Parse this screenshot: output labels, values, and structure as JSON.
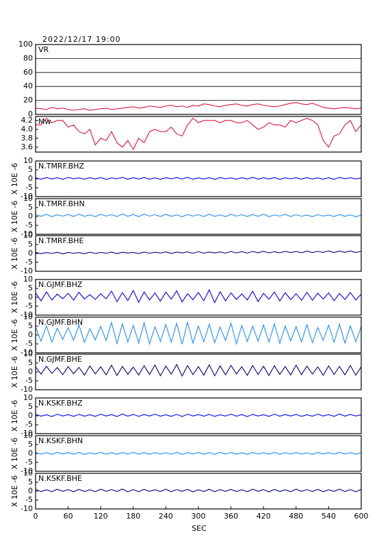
{
  "chart_data": {
    "type": "line",
    "title": "2022/12/17 19:00",
    "xlabel": "SEC",
    "xlim": [
      0,
      600
    ],
    "xticks": [
      0,
      60,
      120,
      180,
      240,
      300,
      360,
      420,
      480,
      540,
      600
    ],
    "x": [
      0,
      10,
      20,
      30,
      40,
      50,
      60,
      70,
      80,
      90,
      100,
      110,
      120,
      130,
      140,
      150,
      160,
      170,
      180,
      190,
      200,
      210,
      220,
      230,
      240,
      250,
      260,
      270,
      280,
      290,
      300,
      310,
      320,
      330,
      340,
      350,
      360,
      370,
      380,
      390,
      400,
      410,
      420,
      430,
      440,
      450,
      460,
      470,
      480,
      490,
      500,
      510,
      520,
      530,
      540,
      550,
      560,
      570,
      580,
      590,
      600
    ],
    "panels": [
      {
        "label": "VR",
        "ylim": [
          0,
          100
        ],
        "yticks": [
          0,
          20,
          40,
          60,
          80,
          100
        ],
        "grid": true,
        "color": "#dc143c",
        "values": [
          9,
          8,
          7,
          10,
          8,
          9,
          7,
          6,
          7,
          8,
          6,
          7,
          8,
          9,
          7,
          8,
          9,
          10,
          11,
          9,
          10,
          12,
          11,
          10,
          12,
          13,
          11,
          12,
          10,
          13,
          12,
          15,
          14,
          12,
          11,
          13,
          14,
          15,
          13,
          12,
          14,
          15,
          13,
          12,
          11,
          12,
          14,
          16,
          17,
          15,
          14,
          16,
          13,
          10,
          9,
          8,
          9,
          10,
          9,
          8,
          9
        ]
      },
      {
        "label": "Mw",
        "ylim": [
          3.49,
          4.29
        ],
        "yticks": [
          3.6,
          3.8,
          {
            "value": 4,
            "label": "4.0"
          },
          4.2
        ],
        "grid": false,
        "color": "#dc143c",
        "values": [
          4.1,
          4.1,
          4.25,
          4.15,
          4.2,
          4.2,
          4.05,
          4.1,
          3.95,
          3.9,
          4.0,
          3.65,
          3.8,
          3.75,
          3.95,
          3.7,
          3.6,
          3.75,
          3.55,
          3.8,
          3.7,
          3.95,
          4.0,
          3.95,
          3.95,
          4.05,
          3.9,
          3.85,
          4.1,
          4.25,
          4.15,
          4.2,
          4.2,
          4.2,
          4.15,
          4.2,
          4.2,
          4.15,
          4.15,
          4.2,
          4.1,
          4.0,
          4.05,
          4.15,
          4.1,
          4.1,
          4.05,
          4.2,
          4.15,
          4.2,
          4.25,
          4.2,
          4.1,
          3.75,
          3.6,
          3.85,
          3.9,
          4.1,
          4.2,
          3.95,
          4.1
        ]
      },
      {
        "label": "N.TMRF.BHZ",
        "ylabel": "X 10E -6",
        "ylim": [
          -10,
          10
        ],
        "yticks": [
          -10,
          -5,
          0,
          5,
          10
        ],
        "grid": false,
        "color": "#0000ff",
        "values": [
          0.5,
          -0.2,
          0.7,
          -0.1,
          0.6,
          -0.3,
          0.8,
          0.0,
          0.5,
          -0.2,
          0.6,
          -0.1,
          0.7,
          -0.3,
          0.5,
          0.0,
          0.8,
          -0.2,
          0.6,
          -0.1,
          0.7,
          -0.2,
          0.5,
          -0.3,
          0.6,
          0.0,
          0.7,
          -0.1,
          0.8,
          -0.2,
          0.5,
          -0.1,
          0.6,
          -0.3,
          0.7,
          0.0,
          0.5,
          -0.2,
          0.6,
          -0.1,
          0.8,
          -0.2,
          0.6,
          -0.1,
          0.7,
          -0.3,
          0.5,
          0.0,
          0.6,
          -0.2,
          0.7,
          -0.1,
          0.5,
          -0.2,
          0.6,
          -0.3,
          0.8,
          0.0,
          0.6,
          -0.1,
          0.5
        ]
      },
      {
        "label": "N.TMRF.BHN",
        "ylabel": "X 10E -6",
        "ylim": [
          -10,
          10
        ],
        "yticks": [
          -10,
          -5,
          0,
          5,
          10
        ],
        "grid": false,
        "color": "#1e8cff",
        "values": [
          1.0,
          0.1,
          1.2,
          -0.1,
          0.9,
          0.2,
          1.1,
          0.0,
          1.3,
          0.1,
          0.9,
          -0.1,
          1.2,
          0.2,
          1.0,
          0.0,
          1.4,
          0.1,
          1.1,
          -0.1,
          1.3,
          0.2,
          1.0,
          0.0,
          1.2,
          0.1,
          0.9,
          -0.1,
          1.1,
          0.2,
          1.0,
          0.0,
          1.3,
          0.1,
          0.9,
          -0.1,
          1.2,
          0.2,
          1.0,
          0.0,
          1.1,
          0.1,
          1.3,
          -0.1,
          0.9,
          0.2,
          1.2,
          0.0,
          1.0,
          0.1,
          0.8,
          -0.1,
          1.0,
          0.2,
          0.9,
          0.0,
          1.1,
          0.1,
          0.9,
          -0.1,
          0.8
        ]
      },
      {
        "label": "N.TMRF.BHE",
        "ylabel": "X 10E -6",
        "ylim": [
          -10,
          10
        ],
        "yticks": [
          -10,
          -5,
          0,
          5,
          10
        ],
        "grid": false,
        "color": "#000080",
        "values": [
          0.6,
          -0.1,
          0.5,
          0.0,
          0.7,
          -0.2,
          0.6,
          0.1,
          0.5,
          -0.1,
          0.7,
          0.0,
          0.6,
          0.1,
          0.8,
          -0.1,
          0.7,
          0.2,
          0.6,
          0.0,
          0.8,
          0.1,
          0.7,
          0.2,
          0.9,
          0.0,
          0.8,
          0.3,
          0.9,
          0.1,
          1.0,
          0.2,
          0.8,
          0.3,
          0.9,
          0.2,
          1.1,
          0.3,
          1.0,
          0.2,
          1.1,
          0.4,
          1.2,
          0.3,
          1.0,
          0.4,
          1.2,
          0.5,
          1.1,
          0.4,
          1.3,
          0.5,
          1.2,
          0.6,
          1.4,
          0.5,
          1.3,
          0.6,
          1.4,
          0.5,
          1.2
        ]
      },
      {
        "label": "N.GJMF.BHZ",
        "ylabel": "X 10E -6",
        "ylim": [
          -10,
          10
        ],
        "yticks": [
          -10,
          -5,
          0,
          5,
          10
        ],
        "grid": false,
        "color": "#0000ff",
        "values": [
          2.5,
          -2.0,
          3.0,
          -1.5,
          1.8,
          -0.8,
          2.2,
          -1.6,
          2.8,
          -1.0,
          1.5,
          -1.2,
          2.0,
          -0.9,
          3.5,
          -2.5,
          2.6,
          -1.8,
          3.8,
          -2.8,
          3.0,
          -1.5,
          2.4,
          -2.2,
          2.9,
          -1.0,
          3.6,
          -2.6,
          2.0,
          -1.4,
          2.7,
          -1.9,
          4.2,
          -3.0,
          3.1,
          -2.0,
          2.5,
          -1.2,
          1.9,
          -1.5,
          3.4,
          -2.4,
          2.2,
          -1.1,
          3.0,
          -2.1,
          2.6,
          -1.3,
          2.0,
          -1.7,
          2.8,
          -1.6,
          2.3,
          -1.0,
          2.5,
          -1.9,
          2.1,
          -1.2,
          2.7,
          -1.5,
          1.8
        ]
      },
      {
        "label": "N.GJMF.BHN",
        "ylabel": "X 10E -6",
        "ylim": [
          -10,
          10
        ],
        "yticks": [
          -10,
          -5,
          0,
          5,
          10
        ],
        "grid": false,
        "color": "#1e8cff",
        "values": [
          4.5,
          -3.5,
          5.0,
          -4.0,
          3.8,
          -2.5,
          4.2,
          -3.0,
          5.5,
          -4.2,
          3.5,
          -2.8,
          4.8,
          -3.2,
          7.0,
          -4.8,
          6.2,
          -3.9,
          5.4,
          -4.5,
          6.8,
          -5.0,
          4.6,
          -3.6,
          5.9,
          -4.1,
          6.5,
          -5.2,
          7.2,
          -4.6,
          5.1,
          -3.8,
          6.0,
          -4.4,
          4.4,
          -3.1,
          6.6,
          -4.9,
          5.3,
          -3.7,
          4.9,
          -3.4,
          5.6,
          -4.0,
          6.3,
          -4.7,
          5.0,
          -3.3,
          4.7,
          -3.9,
          5.8,
          -4.3,
          4.2,
          -3.0,
          5.5,
          -4.1,
          6.1,
          -4.6,
          5.2,
          -3.8,
          4.8
        ]
      },
      {
        "label": "N.GJMF.BHE",
        "ylabel": "X 10E -6",
        "ylim": [
          -10,
          10
        ],
        "yticks": [
          -10,
          -5,
          0,
          5,
          10
        ],
        "grid": false,
        "color": "#000080",
        "values": [
          2.8,
          -1.2,
          3.2,
          -0.8,
          2.5,
          -1.5,
          3.0,
          -1.0,
          2.6,
          -1.8,
          3.4,
          -1.1,
          2.9,
          -1.6,
          3.8,
          -2.0,
          3.1,
          -1.3,
          2.7,
          -1.7,
          3.5,
          -1.4,
          3.9,
          -2.1,
          3.3,
          -1.2,
          4.2,
          -2.3,
          3.6,
          -1.5,
          3.0,
          -1.8,
          4.0,
          -2.2,
          3.4,
          -1.6,
          3.7,
          -1.1,
          2.9,
          -1.9,
          3.6,
          -1.4,
          3.2,
          -2.0,
          3.5,
          -1.3,
          3.0,
          -1.7,
          3.8,
          -1.5,
          3.3,
          -1.2,
          2.8,
          -1.9,
          3.4,
          -1.4,
          3.1,
          -1.6,
          3.6,
          -1.8,
          2.9
        ]
      },
      {
        "label": "N.KSKF.BHZ",
        "ylabel": "X 10E -6",
        "ylim": [
          -10,
          10
        ],
        "yticks": [
          -10,
          -5,
          0,
          5,
          10
        ],
        "grid": false,
        "color": "#0000ff",
        "values": [
          0.8,
          -0.2,
          0.6,
          -0.4,
          0.9,
          -0.1,
          0.7,
          -0.3,
          0.8,
          -0.2,
          0.6,
          -0.3,
          0.9,
          -0.1,
          0.7,
          -0.4,
          1.0,
          -0.2,
          0.8,
          -0.3,
          0.7,
          -0.1,
          0.9,
          -0.2,
          0.6,
          -0.3,
          0.8,
          -0.4,
          0.9,
          -0.1,
          0.7,
          -0.2,
          0.8,
          -0.3,
          0.6,
          -0.1,
          0.9,
          -0.2,
          0.7,
          -0.4,
          0.8,
          -0.1,
          0.6,
          -0.3,
          0.9,
          -0.2,
          0.7,
          -0.1,
          0.8,
          -0.3,
          0.6,
          -0.2,
          0.9,
          -0.1,
          0.7,
          -0.3,
          1.0,
          -0.2,
          0.8,
          -0.1,
          0.6
        ]
      },
      {
        "label": "N.KSKF.BHN",
        "ylabel": "X 10E -6",
        "ylim": [
          -10,
          10
        ],
        "yticks": [
          -10,
          -5,
          0,
          5,
          10
        ],
        "grid": false,
        "color": "#1e8cff",
        "values": [
          0.6,
          -0.4,
          0.5,
          -0.5,
          0.7,
          -0.3,
          0.5,
          -0.4,
          0.6,
          -0.5,
          0.4,
          -0.3,
          0.7,
          -0.4,
          0.5,
          -0.5,
          0.6,
          -0.3,
          0.7,
          -0.4,
          0.5,
          -0.5,
          0.6,
          -0.3,
          0.4,
          -0.4,
          0.7,
          -0.5,
          0.5,
          -0.3,
          0.6,
          -0.4,
          0.5,
          -0.5,
          0.7,
          -0.3,
          0.6,
          -0.4,
          0.4,
          -0.5,
          0.6,
          -0.3,
          0.5,
          -0.4,
          0.7,
          -0.5,
          0.5,
          -0.3,
          0.6,
          -0.4,
          0.4,
          -0.5,
          0.6,
          -0.3,
          0.5,
          -0.4,
          0.7,
          -0.3,
          0.5,
          -0.4,
          0.6
        ]
      },
      {
        "label": "N.KSKF.BHE",
        "ylabel": "X 10E -6",
        "ylim": [
          -10,
          10
        ],
        "yticks": [
          -10,
          -5,
          0,
          5,
          10
        ],
        "grid": false,
        "color": "#000080",
        "values": [
          1.0,
          -0.2,
          0.8,
          -0.3,
          1.1,
          -0.1,
          0.9,
          -0.4,
          1.0,
          -0.2,
          0.8,
          -0.3,
          1.1,
          -0.1,
          0.9,
          -0.2,
          1.2,
          -0.4,
          0.9,
          -0.3,
          1.0,
          -0.1,
          0.8,
          -0.2,
          1.1,
          -0.3,
          0.9,
          -0.1,
          1.0,
          -0.4,
          0.8,
          -0.2,
          1.1,
          -0.3,
          0.9,
          -0.1,
          1.0,
          -0.2,
          0.8,
          -0.3,
          1.1,
          -0.1,
          0.9,
          -0.4,
          1.0,
          -0.2,
          0.8,
          -0.3,
          1.1,
          -0.1,
          0.9,
          -0.2,
          1.0,
          -0.3,
          0.8,
          -0.1,
          1.1,
          -0.2,
          0.9,
          -0.3,
          1.0
        ]
      }
    ]
  }
}
